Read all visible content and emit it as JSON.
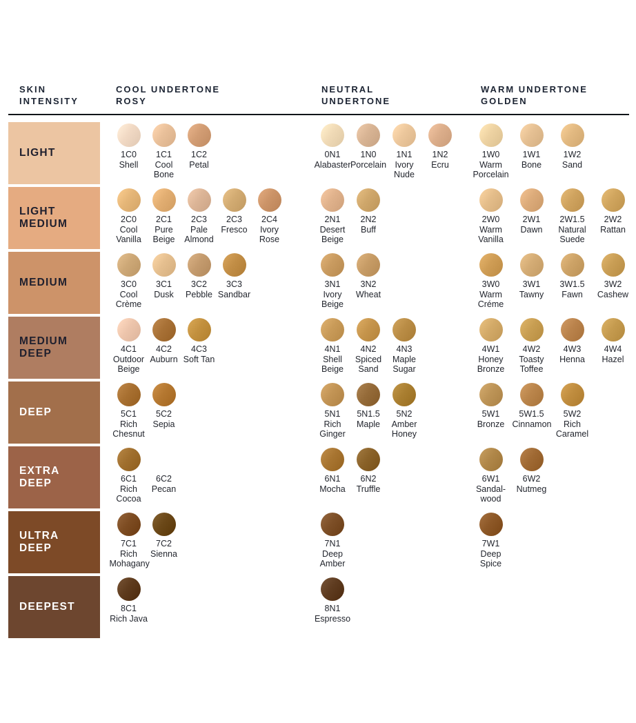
{
  "headers": {
    "intensity": "SKIN\nINTENSITY",
    "cool": "COOL UNDERTONE\nROSY",
    "neutral": "NEUTRAL\nUNDERTONE",
    "warm": "WARM UNDERTONE\nGOLDEN"
  },
  "colors": {
    "header_text": "#1c2433",
    "shade_text": "#23262e",
    "divider": "#101418",
    "label_dark": "#20202e",
    "label_light": "#ffffff",
    "background": "#ffffff"
  },
  "chart_data": {
    "type": "table",
    "title": "Foundation shade chart: skin intensity vs undertone",
    "columns": [
      "SKIN INTENSITY",
      "COOL UNDERTONE ROSY",
      "NEUTRAL UNDERTONE",
      "WARM UNDERTONE GOLDEN"
    ],
    "rows": [
      {
        "intensity": "LIGHT",
        "swatch_color": "#ecc5a2",
        "label_color": "dark",
        "cool": [
          {
            "code": "1C0",
            "name": "Shell",
            "color": "#f1d9c4"
          },
          {
            "code": "1C1",
            "name": "Cool Bone",
            "color": "#e9c09a"
          },
          {
            "code": "1C2",
            "name": "Petal",
            "color": "#d29d74"
          }
        ],
        "neutral": [
          {
            "code": "0N1",
            "name": "Alabaster",
            "color": "#f0dab6"
          },
          {
            "code": "1N0",
            "name": "Porcelain",
            "color": "#d8b494"
          },
          {
            "code": "1N1",
            "name": "Ivory Nude",
            "color": "#ecc79c"
          },
          {
            "code": "1N2",
            "name": "Ecru",
            "color": "#dcae8b"
          }
        ],
        "warm": [
          {
            "code": "1W0",
            "name": "Warm Porcelain",
            "color": "#edd2a2"
          },
          {
            "code": "1W1",
            "name": "Bone",
            "color": "#e5c093"
          },
          {
            "code": "1W2",
            "name": "Sand",
            "color": "#e2b981"
          }
        ]
      },
      {
        "intensity": "LIGHT\nMEDIUM",
        "swatch_color": "#e5ab81",
        "label_color": "dark",
        "cool": [
          {
            "code": "2C0",
            "name": "Cool Vanilla",
            "color": "#e5b678"
          },
          {
            "code": "2C1",
            "name": "Pure Beige",
            "color": "#e2ae72"
          },
          {
            "code": "2C3",
            "name": "Pale Almond",
            "color": "#dcb597"
          },
          {
            "code": "2C3",
            "name": "Fresco",
            "color": "#d2ab72"
          },
          {
            "code": "2C4",
            "name": "Ivory Rose",
            "color": "#cc9468"
          }
        ],
        "neutral": [
          {
            "code": "2N1",
            "name": "Desert Beige",
            "color": "#e0b28c"
          },
          {
            "code": "2N2",
            "name": "Buff",
            "color": "#cfa76b"
          }
        ],
        "warm": [
          {
            "code": "2W0",
            "name": "Warm Vanilla",
            "color": "#e4bd8a"
          },
          {
            "code": "2W1",
            "name": "Dawn",
            "color": "#dcab7a"
          },
          {
            "code": "2W1.5",
            "name": "Natural Suede",
            "color": "#cfa35f"
          },
          {
            "code": "2W2",
            "name": "Rattan",
            "color": "#d0a55e"
          }
        ]
      },
      {
        "intensity": "MEDIUM",
        "swatch_color": "#cd9369",
        "label_color": "dark",
        "cool": [
          {
            "code": "3C0",
            "name": "Cool Crème",
            "color": "#cda877"
          },
          {
            "code": "3C1",
            "name": "Dusk",
            "color": "#e5bf8f"
          },
          {
            "code": "3C2",
            "name": "Pebble",
            "color": "#c49b6e"
          },
          {
            "code": "3C3",
            "name": "Sandbar",
            "color": "#c28e46"
          }
        ],
        "neutral": [
          {
            "code": "3N1",
            "name": "Ivory Beige",
            "color": "#c99b60"
          },
          {
            "code": "3N2",
            "name": "Wheat",
            "color": "#c79c66"
          }
        ],
        "warm": [
          {
            "code": "3W0",
            "name": "Warm Créme",
            "color": "#cf9d55"
          },
          {
            "code": "3W1",
            "name": "Tawny",
            "color": "#d4ac75"
          },
          {
            "code": "3W1.5",
            "name": "Fawn",
            "color": "#cda367"
          },
          {
            "code": "3W2",
            "name": "Cashew",
            "color": "#c99e55"
          }
        ]
      },
      {
        "intensity": "MEDIUM\nDEEP",
        "swatch_color": "#af7d61",
        "label_color": "dark",
        "cool": [
          {
            "code": "4C1",
            "name": "Outdoor Beige",
            "color": "#edc5ac"
          },
          {
            "code": "4C2",
            "name": "Auburn",
            "color": "#a87136"
          },
          {
            "code": "4C3",
            "name": "Soft Tan",
            "color": "#c3913f"
          }
        ],
        "neutral": [
          {
            "code": "4N1",
            "name": "Shell Beige",
            "color": "#c99b59"
          },
          {
            "code": "4N2",
            "name": "Spiced Sand",
            "color": "#c6954c"
          },
          {
            "code": "4N3",
            "name": "Maple Sugar",
            "color": "#ba8d46"
          }
        ],
        "warm": [
          {
            "code": "4W1",
            "name": "Honey Bronze",
            "color": "#d3aa68"
          },
          {
            "code": "4W2",
            "name": "Toasty Toffee",
            "color": "#c89e52"
          },
          {
            "code": "4W3",
            "name": "Henna",
            "color": "#ba834c"
          },
          {
            "code": "4W4",
            "name": "Hazel",
            "color": "#c59b4f"
          }
        ]
      },
      {
        "intensity": "DEEP",
        "swatch_color": "#a26f4b",
        "label_color": "light",
        "cool": [
          {
            "code": "5C1",
            "name": "Rich Chesnut",
            "color": "#a87031"
          },
          {
            "code": "5C2",
            "name": "Sepia",
            "color": "#b57831"
          }
        ],
        "neutral": [
          {
            "code": "5N1",
            "name": "Rich Ginger",
            "color": "#c29455"
          },
          {
            "code": "5N1.5",
            "name": "Maple",
            "color": "#956b39"
          },
          {
            "code": "5N2",
            "name": "Amber Honey",
            "color": "#aa7f31"
          }
        ],
        "warm": [
          {
            "code": "5W1",
            "name": "Bronze",
            "color": "#bd9457"
          },
          {
            "code": "5W1.5",
            "name": "Cinnamon",
            "color": "#ba854b"
          },
          {
            "code": "5W2",
            "name": "Rich Caramel",
            "color": "#c08d3f"
          }
        ]
      },
      {
        "intensity": "EXTRA\nDEEP",
        "swatch_color": "#9c6348",
        "label_color": "light",
        "cool": [
          {
            "code": "6C1",
            "name": "Rich Cocoa",
            "color": "#a06f2e"
          },
          {
            "code": "6C2",
            "name": "Pecan",
            "color": null
          }
        ],
        "neutral": [
          {
            "code": "6N1",
            "name": "Mocha",
            "color": "#a87531"
          },
          {
            "code": "6N2",
            "name": "Truffle",
            "color": "#8a6229"
          }
        ],
        "warm": [
          {
            "code": "6W1",
            "name": "Sandal-wood",
            "color": "#b08749"
          },
          {
            "code": "6W2",
            "name": "Nutmeg",
            "color": "#a06a34"
          }
        ]
      },
      {
        "intensity": "ULTRA\nDEEP",
        "swatch_color": "#7d4a27",
        "label_color": "light",
        "cool": [
          {
            "code": "7C1",
            "name": "Rich Mohagany",
            "color": "#7d4c22"
          },
          {
            "code": "7C2",
            "name": "Sienna",
            "color": "#6b4818"
          }
        ],
        "neutral": [
          {
            "code": "7N1",
            "name": "Deep Amber",
            "color": "#7d4f27"
          }
        ],
        "warm": [
          {
            "code": "7W1",
            "name": "Deep Spice",
            "color": "#8d5827"
          }
        ]
      },
      {
        "intensity": "DEEPEST",
        "swatch_color": "#6d462f",
        "label_color": "light",
        "cool": [
          {
            "code": "8C1",
            "name": "Rich Java",
            "color": "#5e3b1d"
          }
        ],
        "neutral": [
          {
            "code": "8N1",
            "name": "Espresso",
            "color": "#5f3c20"
          }
        ],
        "warm": []
      }
    ]
  }
}
